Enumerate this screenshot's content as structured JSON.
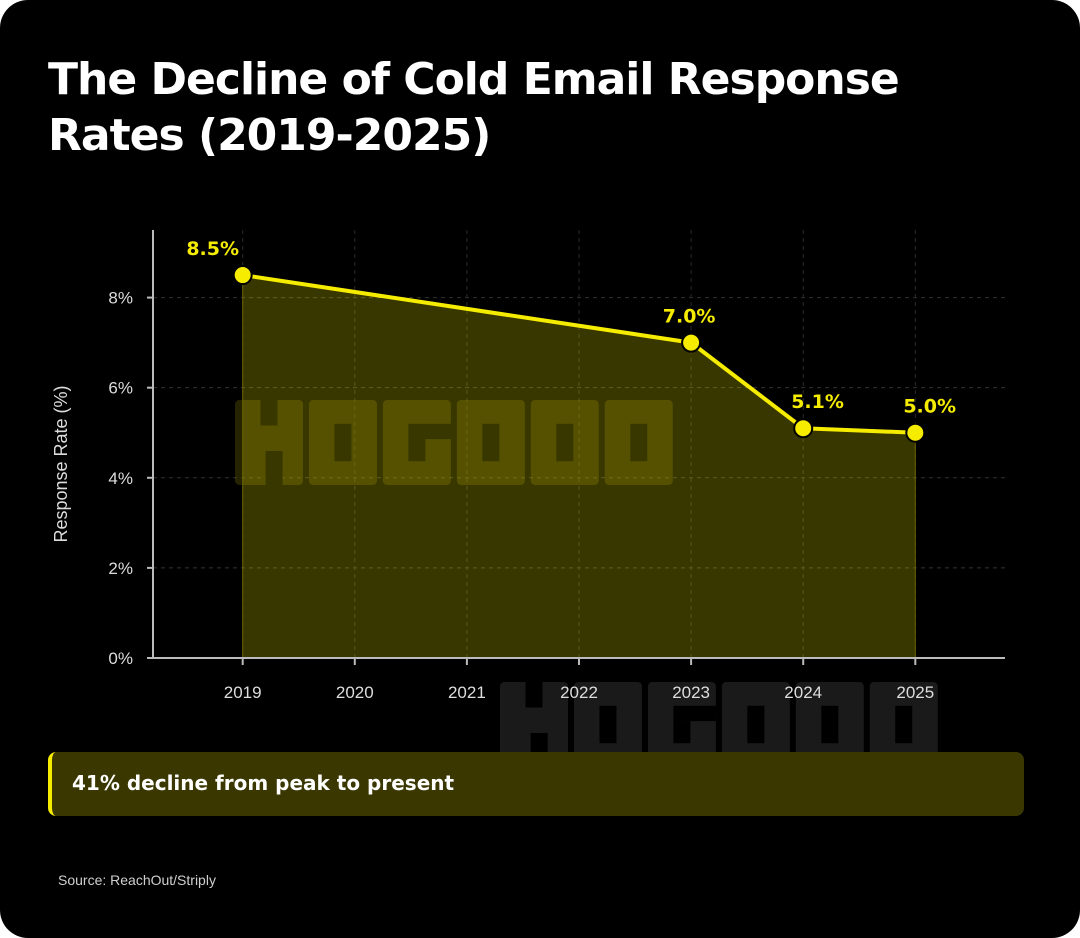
{
  "title": "The Decline of Cold Email Response Rates (2019-2025)",
  "watermark": "NOGOOD",
  "chart_data": {
    "type": "area",
    "title": "The Decline of Cold Email Response Rates (2019-2025)",
    "xlabel": "",
    "ylabel": "Response Rate (%)",
    "categories": [
      "2019",
      "2020",
      "2021",
      "2022",
      "2023",
      "2024",
      "2025"
    ],
    "points": [
      {
        "x": 2019,
        "y": 8.5,
        "label": "8.5%"
      },
      {
        "x": 2023,
        "y": 7.0,
        "label": "7.0%"
      },
      {
        "x": 2024,
        "y": 5.1,
        "label": "5.1%"
      },
      {
        "x": 2025,
        "y": 5.0,
        "label": "5.0%"
      }
    ],
    "yticks": [
      0,
      2,
      4,
      6,
      8
    ],
    "ytick_labels": [
      "0%",
      "2%",
      "4%",
      "6%",
      "8%"
    ],
    "ylim": [
      0,
      9.5
    ],
    "xlim": [
      2018.2,
      2025.8
    ],
    "grid": true,
    "colors": {
      "line": "#f5ec00",
      "fill": "#3a3800",
      "background": "#000000"
    }
  },
  "callout": "41% decline from peak to present",
  "source": "Source: ReachOut/Striply"
}
